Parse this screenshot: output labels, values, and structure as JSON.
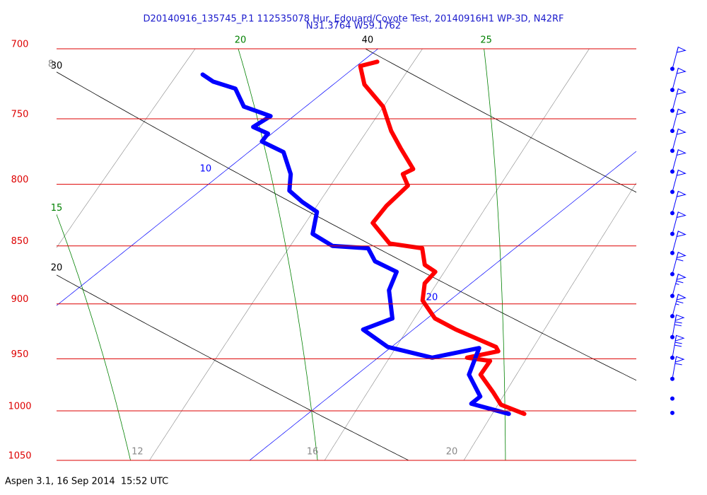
{
  "chart_data": {
    "type": "skewt",
    "title": "D20140916_135745_P.1 112535078 Hur. Edouard/Coyote Test, 20140916H1 WP-3D, N42RF",
    "subtitle": "N31.3764 W59.1762",
    "footer": "Aspen 3.1, 16 Sep 2014  15:52 UTC",
    "ylim": [
      700,
      1050
    ],
    "ylog": true,
    "yticks": [
      700,
      750,
      800,
      850,
      900,
      950,
      1000,
      1050
    ],
    "grid_color": "#dd0000",
    "isotherms": {
      "color": "#0000ff",
      "values": [
        10,
        20
      ]
    },
    "dry_adiabats": {
      "color": "#000000",
      "values": [
        20,
        30,
        40
      ]
    },
    "moist_adiabats": {
      "color": "#008000",
      "values": [
        15,
        20,
        25
      ]
    },
    "mixing_ratios": {
      "color": "#888888",
      "values": [
        8,
        12,
        16,
        20
      ]
    },
    "series": [
      {
        "color": "#ff0000",
        "pressure": [
          709,
          712,
          725,
          741,
          759,
          772,
          788,
          792,
          801,
          817,
          831,
          848,
          852,
          866,
          872,
          882,
          897,
          913,
          923,
          939,
          943,
          949,
          952,
          965,
          982,
          994,
          1003
        ],
        "values": [
          10.4,
          10.1,
          10.8,
          12.0,
          13.0,
          13.8,
          14.8,
          14.7,
          15.2,
          15.3,
          15.5,
          16.6,
          17.6,
          18.2,
          18.7,
          18.8,
          19.3,
          20.2,
          21.1,
          22.7,
          22.9,
          22.3,
          23.0,
          23.2,
          24.1,
          24.7,
          25.6
        ]
      },
      {
        "color": "#0000ff",
        "pressure": [
          718,
          723,
          728,
          741,
          748,
          756,
          761,
          767,
          775,
          792,
          805,
          814,
          822,
          840,
          850,
          852,
          863,
          872,
          888,
          913,
          923,
          939,
          949,
          940,
          965,
          986,
          993,
          1003
        ],
        "values": [
          6.3,
          6.8,
          7.6,
          8.4,
          9.4,
          9.3,
          9.9,
          10.0,
          10.9,
          11.8,
          12.3,
          13.0,
          13.7,
          14.3,
          15.2,
          16.2,
          16.8,
          17.7,
          18.1,
          19.1,
          18.7,
          19.9,
          21.4,
          22.3,
          22.9,
          23.9,
          23.9,
          25.2
        ]
      }
    ],
    "wind": {
      "color": "#0000ff",
      "pressure": [
        714,
        729,
        744,
        759,
        774,
        790,
        806,
        823,
        840,
        856,
        874,
        893,
        911,
        930,
        949,
        969,
        988,
        1002
      ],
      "speed": [
        50,
        50,
        50,
        50,
        50,
        50,
        50,
        50,
        50,
        50,
        60,
        65,
        65,
        70,
        70,
        60,
        0,
        0
      ],
      "direction": [
        15,
        15,
        15,
        15,
        15,
        15,
        15,
        15,
        15,
        15,
        15,
        15,
        15,
        10,
        10,
        10,
        10,
        10
      ]
    }
  }
}
